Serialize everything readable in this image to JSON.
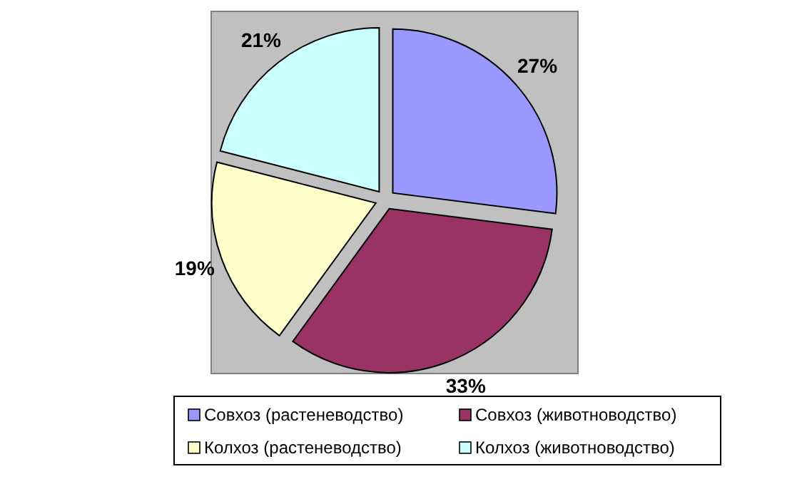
{
  "chart_data": {
    "type": "pie",
    "categories": [
      "Совхоз (растеневодство)",
      "Совхоз (животноводство)",
      "Колхоз (растеневодство)",
      "Колхоз (животноводство)"
    ],
    "values": [
      27,
      33,
      19,
      21
    ],
    "colors": [
      "#9999ff",
      "#993366",
      "#ffffcc",
      "#ccffff"
    ],
    "value_labels": [
      "27%",
      "33%",
      "19%",
      "21%"
    ],
    "legend": "bottom"
  }
}
